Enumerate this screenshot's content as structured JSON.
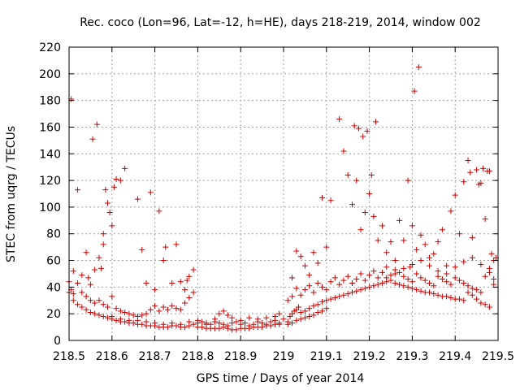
{
  "chart_data": {
    "type": "scatter",
    "title": "Rec. coco (Lon=96, Lat=-12, h=HE), days 218-219, 2014, window 002",
    "xlabel": "GPS time / Days of year 2014",
    "ylabel": "STEC from uqrg / TECUs",
    "xlim": [
      218.5,
      219.5
    ],
    "ylim": [
      0,
      220
    ],
    "xticks": [
      218.5,
      218.6,
      218.7,
      218.8,
      218.9,
      219,
      219.1,
      219.2,
      219.3,
      219.4,
      219.5
    ],
    "xtick_labels": [
      "218.5",
      "218.6",
      "218.7",
      "218.8",
      "218.9",
      "219",
      "219.1",
      "219.2",
      "219.3",
      "219.4",
      "219.5"
    ],
    "yticks": [
      0,
      20,
      40,
      60,
      80,
      100,
      120,
      140,
      160,
      180,
      200,
      220
    ],
    "ytick_labels": [
      "0",
      "20",
      "40",
      "60",
      "80",
      "100",
      "120",
      "140",
      "160",
      "180",
      "200",
      "220"
    ],
    "grid": true,
    "marker": "plus",
    "color": "#cc0000",
    "points": [
      [
        218.505,
        181
      ],
      [
        218.51,
        52
      ],
      [
        218.52,
        113
      ],
      [
        218.53,
        49
      ],
      [
        218.54,
        66
      ],
      [
        218.545,
        47
      ],
      [
        218.55,
        42
      ],
      [
        218.555,
        151
      ],
      [
        218.56,
        53
      ],
      [
        218.565,
        162
      ],
      [
        218.57,
        62
      ],
      [
        218.575,
        54
      ],
      [
        218.58,
        80
      ],
      [
        218.58,
        72
      ],
      [
        218.585,
        113
      ],
      [
        218.59,
        103
      ],
      [
        218.595,
        96
      ],
      [
        218.6,
        86
      ],
      [
        218.605,
        115
      ],
      [
        218.61,
        121
      ],
      [
        218.62,
        120
      ],
      [
        218.63,
        129
      ],
      [
        218.66,
        106
      ],
      [
        218.67,
        68
      ],
      [
        218.68,
        43
      ],
      [
        218.69,
        111
      ],
      [
        218.7,
        38
      ],
      [
        218.71,
        97
      ],
      [
        218.72,
        60
      ],
      [
        218.725,
        70
      ],
      [
        218.74,
        43
      ],
      [
        218.75,
        72
      ],
      [
        218.76,
        44
      ],
      [
        218.77,
        38
      ],
      [
        218.775,
        45
      ],
      [
        218.78,
        48
      ],
      [
        218.79,
        53
      ],
      [
        218.5,
        44
      ],
      [
        218.505,
        38
      ],
      [
        218.51,
        35
      ],
      [
        218.52,
        43
      ],
      [
        218.53,
        36
      ],
      [
        218.54,
        33
      ],
      [
        218.55,
        30
      ],
      [
        218.56,
        28
      ],
      [
        218.57,
        30
      ],
      [
        218.58,
        27
      ],
      [
        218.59,
        25
      ],
      [
        218.6,
        33
      ],
      [
        218.61,
        24
      ],
      [
        218.62,
        22
      ],
      [
        218.63,
        21
      ],
      [
        218.64,
        20
      ],
      [
        218.65,
        19
      ],
      [
        218.66,
        18
      ],
      [
        218.67,
        19
      ],
      [
        218.68,
        20
      ],
      [
        218.69,
        23
      ],
      [
        218.7,
        26
      ],
      [
        218.71,
        22
      ],
      [
        218.72,
        25
      ],
      [
        218.73,
        23
      ],
      [
        218.74,
        26
      ],
      [
        218.75,
        24
      ],
      [
        218.76,
        23
      ],
      [
        218.77,
        28
      ],
      [
        218.78,
        32
      ],
      [
        218.79,
        36
      ],
      [
        218.8,
        15
      ],
      [
        218.81,
        14
      ],
      [
        218.82,
        13
      ],
      [
        218.83,
        12
      ],
      [
        218.84,
        14
      ],
      [
        218.85,
        13
      ],
      [
        218.86,
        12
      ],
      [
        218.87,
        11
      ],
      [
        218.88,
        13
      ],
      [
        218.89,
        14
      ],
      [
        218.9,
        12
      ],
      [
        218.91,
        13
      ],
      [
        218.92,
        11
      ],
      [
        218.93,
        12
      ],
      [
        218.94,
        14
      ],
      [
        218.95,
        13
      ],
      [
        218.96,
        12
      ],
      [
        218.97,
        14
      ],
      [
        218.98,
        15
      ],
      [
        218.99,
        13
      ],
      [
        218.5,
        36
      ],
      [
        218.51,
        30
      ],
      [
        218.52,
        27
      ],
      [
        218.53,
        25
      ],
      [
        218.54,
        23
      ],
      [
        218.55,
        21
      ],
      [
        218.56,
        20
      ],
      [
        218.57,
        19
      ],
      [
        218.58,
        18
      ],
      [
        218.59,
        17
      ],
      [
        218.6,
        16
      ],
      [
        218.61,
        15
      ],
      [
        218.62,
        14
      ],
      [
        218.63,
        14
      ],
      [
        218.64,
        13
      ],
      [
        218.65,
        13
      ],
      [
        218.66,
        12
      ],
      [
        218.67,
        12
      ],
      [
        218.68,
        11
      ],
      [
        218.69,
        11
      ],
      [
        218.7,
        11
      ],
      [
        218.71,
        10
      ],
      [
        218.72,
        10
      ],
      [
        218.73,
        10
      ],
      [
        218.74,
        11
      ],
      [
        218.75,
        11
      ],
      [
        218.76,
        10
      ],
      [
        218.77,
        10
      ],
      [
        218.78,
        11
      ],
      [
        218.79,
        12
      ],
      [
        218.8,
        10
      ],
      [
        218.81,
        10
      ],
      [
        218.82,
        9
      ],
      [
        218.83,
        9
      ],
      [
        218.84,
        9
      ],
      [
        218.85,
        9
      ],
      [
        218.86,
        10
      ],
      [
        218.87,
        9
      ],
      [
        218.88,
        8
      ],
      [
        218.89,
        8
      ],
      [
        218.9,
        9
      ],
      [
        218.91,
        9
      ],
      [
        218.92,
        9
      ],
      [
        218.93,
        10
      ],
      [
        218.94,
        10
      ],
      [
        218.95,
        10
      ],
      [
        218.96,
        11
      ],
      [
        218.97,
        11
      ],
      [
        218.98,
        12
      ],
      [
        218.99,
        12
      ],
      [
        218.6,
        18
      ],
      [
        218.62,
        16
      ],
      [
        218.64,
        15
      ],
      [
        218.66,
        15
      ],
      [
        218.68,
        14
      ],
      [
        218.7,
        13
      ],
      [
        218.72,
        12
      ],
      [
        218.74,
        13
      ],
      [
        218.76,
        12
      ],
      [
        218.78,
        14
      ],
      [
        218.8,
        13
      ],
      [
        218.82,
        12
      ],
      [
        218.84,
        16
      ],
      [
        218.85,
        20
      ],
      [
        218.86,
        22
      ],
      [
        218.87,
        19
      ],
      [
        218.88,
        17
      ],
      [
        218.9,
        15
      ],
      [
        218.92,
        17
      ],
      [
        218.94,
        16
      ],
      [
        218.96,
        17
      ],
      [
        218.98,
        18
      ],
      [
        218.99,
        20
      ],
      [
        219.0,
        16
      ],
      [
        219.01,
        14
      ],
      [
        219.015,
        18
      ],
      [
        219.02,
        20
      ],
      [
        219.025,
        22
      ],
      [
        219.03,
        23
      ],
      [
        219.035,
        25
      ],
      [
        219.04,
        21
      ],
      [
        219.05,
        22
      ],
      [
        219.06,
        24
      ],
      [
        219.07,
        26
      ],
      [
        219.08,
        27
      ],
      [
        219.09,
        29
      ],
      [
        219.1,
        30
      ],
      [
        219.11,
        31
      ],
      [
        219.12,
        32
      ],
      [
        219.13,
        33
      ],
      [
        219.14,
        34
      ],
      [
        219.15,
        35
      ],
      [
        219.16,
        36
      ],
      [
        219.17,
        37
      ],
      [
        219.18,
        38
      ],
      [
        219.19,
        39
      ],
      [
        219.2,
        40
      ],
      [
        219.21,
        41
      ],
      [
        219.22,
        42
      ],
      [
        219.23,
        43
      ],
      [
        219.24,
        44
      ],
      [
        219.25,
        45
      ],
      [
        219.26,
        43
      ],
      [
        219.27,
        42
      ],
      [
        219.28,
        41
      ],
      [
        219.29,
        40
      ],
      [
        219.3,
        39
      ],
      [
        219.31,
        38
      ],
      [
        219.32,
        37
      ],
      [
        219.33,
        36
      ],
      [
        219.34,
        36
      ],
      [
        219.35,
        35
      ],
      [
        219.36,
        34
      ],
      [
        219.37,
        33
      ],
      [
        219.38,
        33
      ],
      [
        219.39,
        32
      ],
      [
        219.4,
        31
      ],
      [
        219.41,
        31
      ],
      [
        219.42,
        30
      ],
      [
        219.43,
        36
      ],
      [
        219.44,
        34
      ],
      [
        219.45,
        31
      ],
      [
        219.46,
        28
      ],
      [
        219.47,
        27
      ],
      [
        219.48,
        25
      ],
      [
        219.49,
        42
      ],
      [
        219.01,
        30
      ],
      [
        219.02,
        33
      ],
      [
        219.03,
        39
      ],
      [
        219.04,
        34
      ],
      [
        219.05,
        38
      ],
      [
        219.06,
        41
      ],
      [
        219.07,
        36
      ],
      [
        219.08,
        43
      ],
      [
        219.09,
        40
      ],
      [
        219.1,
        38
      ],
      [
        219.11,
        44
      ],
      [
        219.12,
        47
      ],
      [
        219.13,
        42
      ],
      [
        219.14,
        45
      ],
      [
        219.15,
        48
      ],
      [
        219.16,
        43
      ],
      [
        219.17,
        46
      ],
      [
        219.18,
        50
      ],
      [
        219.19,
        45
      ],
      [
        219.2,
        49
      ],
      [
        219.21,
        52
      ],
      [
        219.22,
        47
      ],
      [
        219.23,
        51
      ],
      [
        219.24,
        55
      ],
      [
        219.25,
        49
      ],
      [
        219.26,
        53
      ],
      [
        219.27,
        51
      ],
      [
        219.28,
        48
      ],
      [
        219.29,
        46
      ],
      [
        219.3,
        44
      ],
      [
        219.31,
        50
      ],
      [
        219.32,
        47
      ],
      [
        219.33,
        45
      ],
      [
        219.34,
        43
      ],
      [
        219.35,
        41
      ],
      [
        219.36,
        48
      ],
      [
        219.37,
        46
      ],
      [
        219.38,
        44
      ],
      [
        219.39,
        42
      ],
      [
        219.4,
        47
      ],
      [
        219.41,
        45
      ],
      [
        219.42,
        43
      ],
      [
        219.43,
        41
      ],
      [
        219.44,
        39
      ],
      [
        219.45,
        38
      ],
      [
        219.46,
        36
      ],
      [
        219.47,
        48
      ],
      [
        219.48,
        51
      ],
      [
        219.49,
        46
      ],
      [
        219.02,
        47
      ],
      [
        219.03,
        67
      ],
      [
        219.04,
        63
      ],
      [
        219.05,
        56
      ],
      [
        219.06,
        49
      ],
      [
        219.07,
        66
      ],
      [
        219.08,
        58
      ],
      [
        219.09,
        107
      ],
      [
        219.1,
        70
      ],
      [
        219.11,
        105
      ],
      [
        219.13,
        166
      ],
      [
        219.14,
        142
      ],
      [
        219.15,
        124
      ],
      [
        219.16,
        102
      ],
      [
        219.165,
        161
      ],
      [
        219.17,
        120
      ],
      [
        219.175,
        159
      ],
      [
        219.18,
        83
      ],
      [
        219.185,
        153
      ],
      [
        219.19,
        96
      ],
      [
        219.195,
        157
      ],
      [
        219.2,
        110
      ],
      [
        219.205,
        124
      ],
      [
        219.21,
        93
      ],
      [
        219.215,
        164
      ],
      [
        219.22,
        75
      ],
      [
        219.23,
        86
      ],
      [
        219.24,
        66
      ],
      [
        219.25,
        74
      ],
      [
        219.26,
        60
      ],
      [
        219.27,
        90
      ],
      [
        219.28,
        75
      ],
      [
        219.29,
        120
      ],
      [
        219.295,
        55
      ],
      [
        219.3,
        86
      ],
      [
        219.305,
        187
      ],
      [
        219.31,
        68
      ],
      [
        219.315,
        205
      ],
      [
        219.32,
        79
      ],
      [
        219.33,
        72
      ],
      [
        219.34,
        62
      ],
      [
        219.35,
        65
      ],
      [
        219.36,
        74
      ],
      [
        219.37,
        83
      ],
      [
        219.38,
        56
      ],
      [
        219.39,
        97
      ],
      [
        219.4,
        109
      ],
      [
        219.41,
        80
      ],
      [
        219.42,
        119
      ],
      [
        219.43,
        135
      ],
      [
        219.435,
        126
      ],
      [
        219.44,
        77
      ],
      [
        219.45,
        128
      ],
      [
        219.455,
        117
      ],
      [
        219.46,
        118
      ],
      [
        219.465,
        129
      ],
      [
        219.47,
        91
      ],
      [
        219.475,
        127
      ],
      [
        219.48,
        127
      ],
      [
        219.485,
        65
      ],
      [
        219.49,
        60
      ],
      [
        219.495,
        62
      ],
      [
        219.01,
        12
      ],
      [
        219.02,
        13
      ],
      [
        219.03,
        15
      ],
      [
        219.04,
        16
      ],
      [
        219.05,
        17
      ],
      [
        219.06,
        18
      ],
      [
        219.07,
        19
      ],
      [
        219.08,
        21
      ],
      [
        219.09,
        22
      ],
      [
        219.1,
        24
      ],
      [
        219.24,
        47
      ],
      [
        219.26,
        50
      ],
      [
        219.28,
        54
      ],
      [
        219.3,
        57
      ],
      [
        219.32,
        60
      ],
      [
        219.34,
        56
      ],
      [
        219.36,
        52
      ],
      [
        219.38,
        50
      ],
      [
        219.4,
        55
      ],
      [
        219.42,
        59
      ],
      [
        219.44,
        62
      ],
      [
        219.46,
        57
      ],
      [
        219.48,
        54
      ]
    ]
  }
}
